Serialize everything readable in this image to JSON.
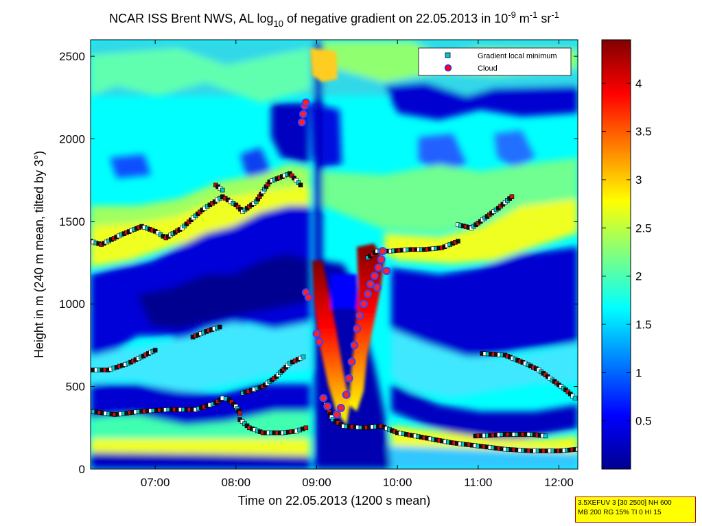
{
  "chart_data": {
    "type": "heatmap",
    "title": "NCAR ISS Brent NWS, AL log10 of negative gradient on 22.05.2013 in 10^-9 m^-1 sr^-1",
    "title_parts": {
      "prefix": "NCAR ISS Brent NWS, AL log",
      "log_base": "10",
      "middle": " of negative gradient on 22.05.2013 in 10",
      "exp1": "-9",
      "unit1": " m",
      "exp2": "-1",
      "unit2": " sr",
      "exp3": "-1"
    },
    "xlabel": "Time on 22.05.2013 (1200 s mean)",
    "ylabel": "Height in m (240 m mean, tilted by 3°)",
    "xlim": [
      "06:12",
      "12:14"
    ],
    "x_ticks": [
      "07:00",
      "08:00",
      "09:00",
      "10:00",
      "11:00",
      "12:00"
    ],
    "ylim": [
      0,
      2600
    ],
    "y_ticks": [
      0,
      500,
      1000,
      1500,
      2000,
      2500
    ],
    "colorbar": {
      "range": [
        0,
        4.45
      ],
      "ticks": [
        "0.5",
        "1",
        "1.5",
        "2",
        "2.5",
        "3",
        "3.5",
        "4"
      ],
      "colormap": "jet"
    },
    "legend": {
      "placement": "top-right",
      "entries": [
        {
          "label": "Gradient local minimum",
          "marker": "square",
          "color": "#00c8d0"
        },
        {
          "label": "Cloud",
          "marker": "circle",
          "color": "#ff0000",
          "edge": "#3333ff"
        }
      ]
    },
    "series": [
      {
        "name": "Gradient local minimum",
        "marker": "square",
        "segments": [
          [
            [
              "06:12",
              1380
            ],
            [
              "06:20",
              1360
            ],
            [
              "06:35",
              1420
            ],
            [
              "06:50",
              1470
            ],
            [
              "07:00",
              1440
            ],
            [
              "07:08",
              1400
            ],
            [
              "07:20",
              1460
            ],
            [
              "07:35",
              1570
            ],
            [
              "07:50",
              1650
            ],
            [
              "08:00",
              1600
            ],
            [
              "08:05",
              1560
            ],
            [
              "08:15",
              1620
            ],
            [
              "08:25",
              1740
            ],
            [
              "08:40",
              1790
            ],
            [
              "08:48",
              1720
            ]
          ],
          [
            [
              "06:12",
              600
            ],
            [
              "06:25",
              600
            ],
            [
              "06:40",
              640
            ],
            [
              "06:55",
              700
            ],
            [
              "07:00",
              720
            ]
          ],
          [
            [
              "07:28",
              800
            ],
            [
              "07:40",
              840
            ],
            [
              "07:48",
              860
            ]
          ],
          [
            [
              "08:05",
              460
            ],
            [
              "08:20",
              500
            ],
            [
              "08:30",
              560
            ],
            [
              "08:40",
              640
            ],
            [
              "08:50",
              680
            ]
          ],
          [
            [
              "06:12",
              350
            ],
            [
              "06:30",
              330
            ],
            [
              "06:50",
              350
            ],
            [
              "07:10",
              360
            ],
            [
              "07:30",
              360
            ],
            [
              "07:45",
              400
            ],
            [
              "07:50",
              430
            ],
            [
              "07:55",
              420
            ],
            [
              "08:00",
              380
            ],
            [
              "08:03",
              340
            ]
          ],
          [
            [
              "08:03",
              300
            ],
            [
              "08:10",
              250
            ],
            [
              "08:20",
              220
            ],
            [
              "08:35",
              220
            ],
            [
              "08:45",
              230
            ],
            [
              "08:52",
              250
            ]
          ],
          [
            [
              "09:05",
              420
            ],
            [
              "09:12",
              300
            ],
            [
              "09:20",
              260
            ],
            [
              "09:35",
              250
            ],
            [
              "09:48",
              260
            ],
            [
              "10:00",
              220
            ],
            [
              "10:20",
              190
            ],
            [
              "10:40",
              160
            ],
            [
              "11:00",
              140
            ],
            [
              "11:20",
              120
            ],
            [
              "11:40",
              110
            ],
            [
              "12:00",
              110
            ],
            [
              "12:14",
              120
            ]
          ],
          [
            [
              "10:58",
              200
            ],
            [
              "11:20",
              210
            ],
            [
              "11:40",
              210
            ],
            [
              "11:50",
              200
            ]
          ],
          [
            [
              "09:38",
              1280
            ],
            [
              "09:45",
              1320
            ],
            [
              "09:55",
              1320
            ],
            [
              "10:10",
              1330
            ],
            [
              "10:20",
              1330
            ],
            [
              "10:33",
              1340
            ],
            [
              "10:45",
              1380
            ]
          ],
          [
            [
              "10:45",
              1480
            ],
            [
              "10:55",
              1460
            ],
            [
              "11:05",
              1520
            ],
            [
              "11:15",
              1580
            ],
            [
              "11:25",
              1650
            ]
          ],
          [
            [
              "11:03",
              700
            ],
            [
              "11:20",
              690
            ],
            [
              "11:35",
              640
            ],
            [
              "11:45",
              600
            ],
            [
              "11:55",
              540
            ],
            [
              "12:05",
              480
            ],
            [
              "12:12",
              430
            ]
          ],
          [
            [
              "07:45",
              1720
            ],
            [
              "07:50",
              1690
            ]
          ]
        ]
      },
      {
        "name": "Cloud",
        "marker": "circle",
        "points": [
          [
            "08:49",
            2100
          ],
          [
            "08:50",
            2150
          ],
          [
            "08:51",
            2200
          ],
          [
            "08:52",
            2220
          ],
          [
            "08:52",
            1070
          ],
          [
            "08:54",
            1040
          ],
          [
            "09:00",
            820
          ],
          [
            "09:02",
            770
          ],
          [
            "09:05",
            430
          ],
          [
            "09:08",
            380
          ],
          [
            "09:15",
            330
          ],
          [
            "09:18",
            370
          ],
          [
            "09:22",
            450
          ],
          [
            "09:24",
            550
          ],
          [
            "09:26",
            650
          ],
          [
            "09:28",
            750
          ],
          [
            "09:30",
            850
          ],
          [
            "09:32",
            930
          ],
          [
            "09:35",
            1000
          ],
          [
            "09:38",
            1060
          ],
          [
            "09:40",
            1120
          ],
          [
            "09:43",
            1170
          ],
          [
            "09:46",
            1220
          ],
          [
            "09:48",
            1270
          ],
          [
            "09:49",
            1320
          ],
          [
            "09:52",
            1200
          ],
          [
            "09:45",
            1100
          ]
        ]
      }
    ]
  }
}
